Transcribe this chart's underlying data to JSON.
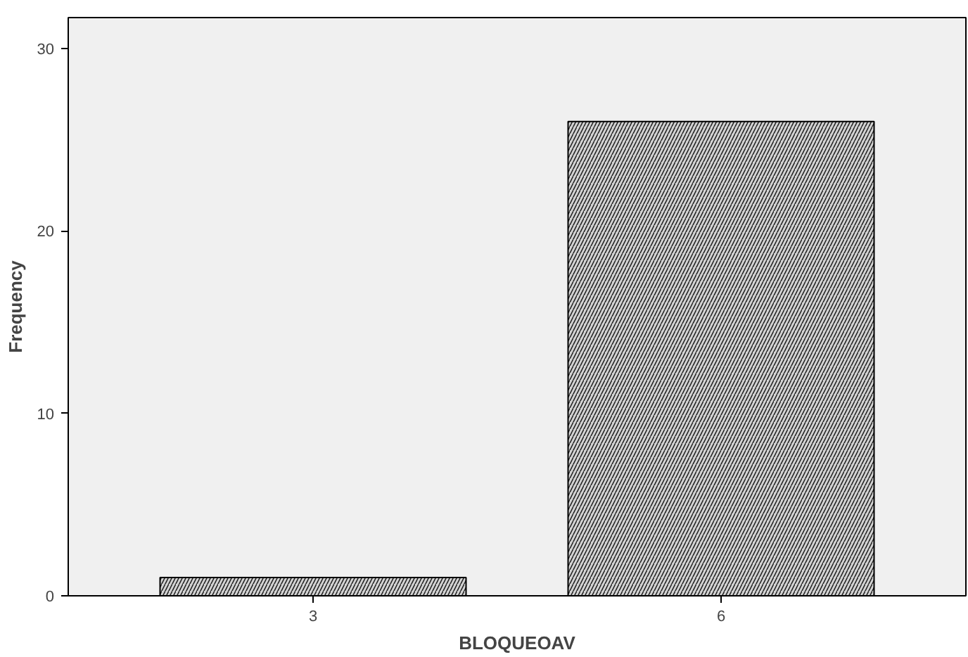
{
  "chart_data": {
    "type": "bar",
    "xlabel": "BLOQUEOAV",
    "ylabel": "Frequency",
    "categories": [
      "3",
      "6"
    ],
    "values": [
      1,
      26
    ],
    "color": "#d3d3d3",
    "ylim": [
      0,
      31.7
    ],
    "yticks": [
      0,
      10,
      20,
      30
    ],
    "grid": false
  }
}
